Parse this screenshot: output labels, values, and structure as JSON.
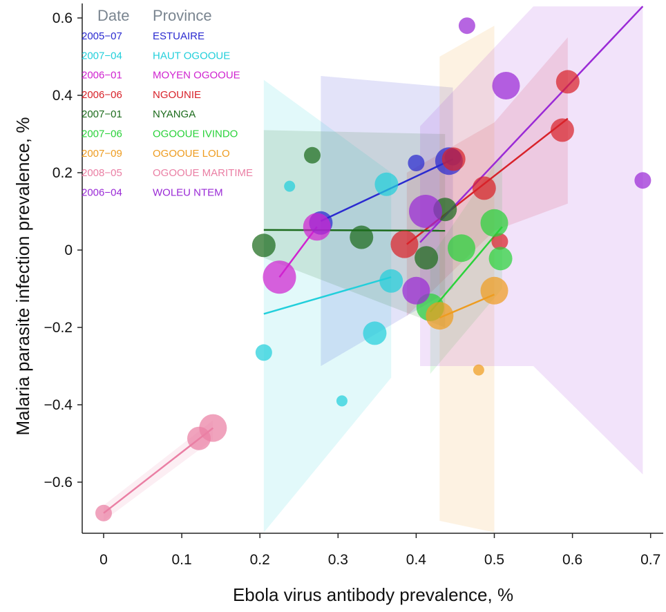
{
  "chart_data": {
    "type": "scatter",
    "title": "",
    "xlabel": "Ebola virus antibody prevalence, %",
    "ylabel": "Malaria parasite infection prevalence, %",
    "xlim": [
      -0.03,
      0.72
    ],
    "ylim": [
      -0.73,
      0.63
    ],
    "x_ticks": [
      0,
      0.1,
      0.2,
      0.3,
      0.4,
      0.5,
      0.6,
      0.7
    ],
    "x_tick_labels": [
      "0",
      "0.1",
      "0.2",
      "0.3",
      "0.4",
      "0.5",
      "0.6",
      "0.7"
    ],
    "y_ticks": [
      -0.6,
      -0.4,
      -0.2,
      0,
      0.2,
      0.4,
      0.6
    ],
    "y_tick_labels": [
      "−0.6",
      "−0.4",
      "−0.2",
      "0",
      "0.2",
      "0.4",
      "0.6"
    ],
    "grid": false,
    "legend": {
      "placement": "top-left",
      "date_header": "Date",
      "province_header": "Province"
    },
    "series": [
      {
        "name": "ESTUAIRE",
        "date": "2005−07",
        "color": "#2a2ad0",
        "points": [
          [
            0.278,
            0.07,
            "m"
          ],
          [
            0.4,
            0.225,
            "s"
          ],
          [
            0.442,
            0.23,
            "l"
          ],
          [
            0.447,
            0.24,
            "s"
          ]
        ],
        "fit": [
          [
            0.278,
            0.075
          ],
          [
            0.447,
            0.235
          ]
        ],
        "band": [
          [
            0.278,
            -0.3,
            0.45
          ],
          [
            0.447,
            -0.1,
            0.42
          ]
        ]
      },
      {
        "name": "HAUT OGOOUE",
        "date": "2007−04",
        "color": "#22cfdb",
        "points": [
          [
            0.205,
            -0.265,
            "s"
          ],
          [
            0.238,
            0.165,
            "xs"
          ],
          [
            0.305,
            -0.39,
            "xs"
          ],
          [
            0.347,
            -0.215,
            "m"
          ],
          [
            0.362,
            0.17,
            "m"
          ],
          [
            0.368,
            -0.08,
            "m"
          ]
        ],
        "fit": [
          [
            0.205,
            -0.165
          ],
          [
            0.368,
            -0.07
          ]
        ],
        "band": [
          [
            0.205,
            -0.73,
            0.44
          ],
          [
            0.368,
            -0.33,
            0.2
          ]
        ]
      },
      {
        "name": "MOYEN OGOOUE",
        "date": "2006−01",
        "color": "#d023d0",
        "points": [
          [
            0.225,
            -0.07,
            "xl"
          ],
          [
            0.273,
            0.06,
            "l"
          ]
        ],
        "fit": [
          [
            0.225,
            -0.07
          ],
          [
            0.273,
            0.06
          ]
        ],
        "band": null
      },
      {
        "name": "NGOUNIE",
        "date": "2006−06",
        "color": "#d8222a",
        "points": [
          [
            0.385,
            0.015,
            "l"
          ],
          [
            0.448,
            0.235,
            "m"
          ],
          [
            0.487,
            0.16,
            "m"
          ],
          [
            0.507,
            0.022,
            "s"
          ],
          [
            0.587,
            0.31,
            "m"
          ],
          [
            0.594,
            0.435,
            "m"
          ]
        ],
        "fit": [
          [
            0.388,
            0.015
          ],
          [
            0.594,
            0.34
          ]
        ],
        "band": [
          [
            0.388,
            -0.17,
            0.2
          ],
          [
            0.5,
            0.05,
            0.33
          ],
          [
            0.594,
            0.12,
            0.55
          ]
        ]
      },
      {
        "name": "NYANGA",
        "date": "2007−01",
        "color": "#1c6b1c",
        "points": [
          [
            0.205,
            0.012,
            "m"
          ],
          [
            0.267,
            0.245,
            "s"
          ],
          [
            0.33,
            0.033,
            "m"
          ],
          [
            0.413,
            -0.02,
            "m"
          ],
          [
            0.437,
            0.105,
            "m"
          ]
        ],
        "fit": [
          [
            0.205,
            0.052
          ],
          [
            0.437,
            0.05
          ]
        ],
        "band": [
          [
            0.205,
            -0.02,
            0.31
          ],
          [
            0.437,
            -0.2,
            0.3
          ]
        ]
      },
      {
        "name": "OGOOUE IVINDO",
        "date": "2007−06",
        "color": "#2ad23a",
        "points": [
          [
            0.418,
            -0.148,
            "l"
          ],
          [
            0.458,
            0.005,
            "l"
          ],
          [
            0.5,
            0.07,
            "l"
          ],
          [
            0.508,
            -0.022,
            "m"
          ]
        ],
        "fit": [
          [
            0.418,
            -0.16
          ],
          [
            0.51,
            0.06
          ]
        ],
        "band": [
          [
            0.418,
            -0.32,
            -0.02
          ],
          [
            0.51,
            -0.1,
            0.25
          ]
        ]
      },
      {
        "name": "OGOOUE LOLO",
        "date": "2007−09",
        "color": "#ee9c20",
        "points": [
          [
            0.43,
            -0.17,
            "l"
          ],
          [
            0.48,
            -0.31,
            "xs"
          ],
          [
            0.5,
            -0.105,
            "l"
          ]
        ],
        "fit": [
          [
            0.43,
            -0.175
          ],
          [
            0.5,
            -0.115
          ]
        ],
        "band": [
          [
            0.43,
            -0.7,
            0.5
          ],
          [
            0.5,
            -0.73,
            0.58
          ]
        ]
      },
      {
        "name": "OGOOUE MARITIME",
        "date": "2008−05",
        "color": "#ea7fa4",
        "points": [
          [
            0.0,
            -0.68,
            "s"
          ],
          [
            0.122,
            -0.487,
            "m"
          ],
          [
            0.14,
            -0.46,
            "l"
          ]
        ],
        "fit": [
          [
            0.0,
            -0.68
          ],
          [
            0.14,
            -0.46
          ]
        ],
        "band": [
          [
            0.0,
            -0.7,
            -0.66
          ],
          [
            0.14,
            -0.49,
            -0.44
          ]
        ]
      },
      {
        "name": "WOLEU NTEM",
        "date": "2006−04",
        "color": "#9a2ad6",
        "points": [
          [
            0.4,
            -0.105,
            "l"
          ],
          [
            0.412,
            0.1,
            "xl"
          ],
          [
            0.465,
            0.58,
            "s"
          ],
          [
            0.515,
            0.425,
            "l"
          ],
          [
            0.69,
            0.18,
            "s"
          ]
        ],
        "fit": [
          [
            0.405,
            0.02
          ],
          [
            0.69,
            0.63
          ]
        ],
        "band": [
          [
            0.405,
            -0.3,
            0.32
          ],
          [
            0.55,
            -0.3,
            0.63
          ],
          [
            0.69,
            -0.58,
            0.63
          ]
        ]
      }
    ]
  }
}
